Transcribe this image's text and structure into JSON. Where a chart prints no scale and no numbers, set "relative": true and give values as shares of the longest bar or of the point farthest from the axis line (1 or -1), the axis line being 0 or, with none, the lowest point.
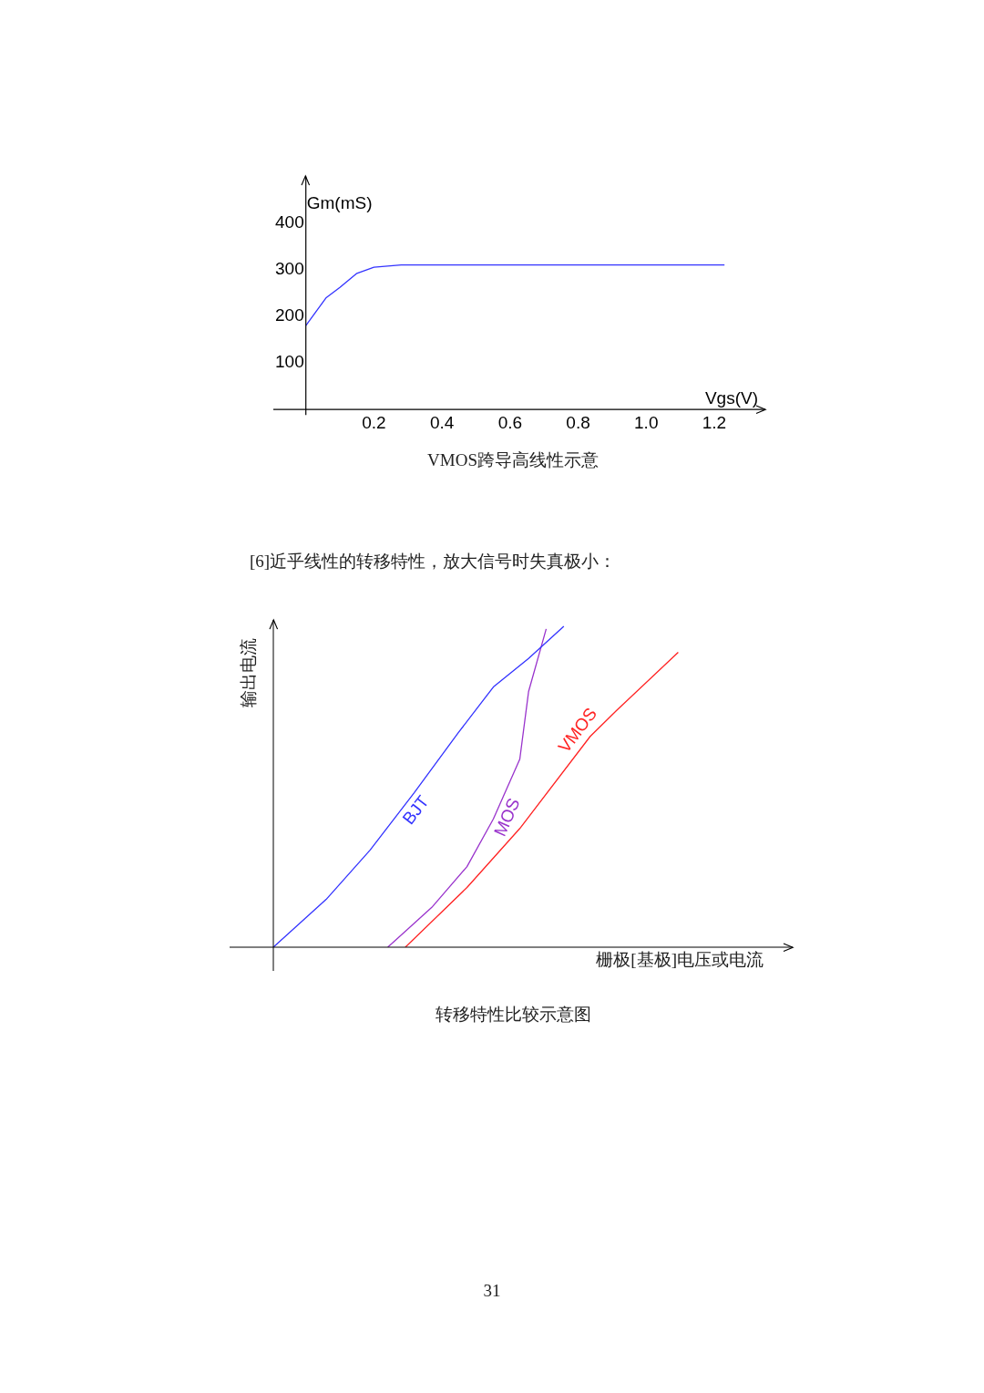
{
  "chart_data": [
    {
      "type": "line",
      "title": "VMOS跨导高线性示意",
      "xlabel": "Vgs(V)",
      "ylabel": "Gm(mS)",
      "xlim": [
        0,
        1.35
      ],
      "ylim": [
        0,
        500
      ],
      "xticks": [
        0.2,
        0.4,
        0.6,
        0.8,
        {
          "value": 1.0,
          "label": "1.0"
        },
        1.2
      ],
      "yticks": [
        100,
        200,
        300,
        400
      ],
      "grid": false,
      "legend": false,
      "series": [
        {
          "color": "#3333ff",
          "x": [
            0,
            0.06,
            0.1,
            0.15,
            0.2,
            0.28,
            1.23
          ],
          "values": [
            180,
            240,
            262,
            292,
            305,
            310,
            310
          ]
        }
      ]
    },
    {
      "type": "line",
      "relative": true,
      "subtitle": "[6]近乎线性的转移特性，放大信号时失真极小：",
      "title": "转移特性比较示意图",
      "xlabel": "栅极[基极]电压或电流",
      "ylabel": "输出电流",
      "annotations": [
        "31"
      ],
      "grid": false,
      "legend": false,
      "categories": [
        null,
        null,
        null,
        null,
        null,
        null,
        null,
        null,
        null,
        null,
        null,
        null,
        null,
        null,
        null,
        null,
        null,
        null,
        null,
        null,
        null,
        null,
        null,
        null,
        null,
        null,
        null,
        null,
        null,
        null,
        null,
        null,
        null,
        null,
        null,
        null,
        null,
        null,
        null,
        null,
        null,
        null,
        null,
        null,
        null,
        null,
        null,
        null,
        null,
        null,
        null,
        null,
        null,
        null,
        null,
        null,
        null,
        null,
        null,
        null
      ],
      "series": [
        {
          "name": "BJT",
          "color": "#3333ff",
          "values": [
            0,
            null,
            null,
            null,
            null,
            null,
            0.149,
            null,
            null,
            null,
            null,
            0.303,
            null,
            null,
            null,
            null,
            0.481,
            null,
            null,
            null,
            null,
            0.668,
            null,
            null,
            null,
            0.811,
            null,
            null,
            null,
            0.9,
            null,
            null,
            null,
            1.0,
            null,
            null,
            null,
            null,
            null,
            null,
            null,
            null,
            null,
            null,
            null,
            null,
            null,
            null,
            null,
            null,
            null,
            null,
            null,
            null,
            null,
            null,
            null,
            null,
            null,
            null
          ]
        },
        {
          "name": "MOS",
          "color": "#9933cc",
          "values": [
            null,
            null,
            null,
            null,
            null,
            null,
            null,
            null,
            null,
            null,
            null,
            null,
            null,
            0,
            null,
            null,
            null,
            null,
            0.124,
            null,
            null,
            null,
            0.251,
            null,
            null,
            0.4,
            null,
            null,
            0.586,
            0.797,
            null,
            0.992,
            null,
            null,
            null,
            null,
            null,
            null,
            null,
            null,
            null,
            null,
            null,
            null,
            null,
            null,
            null,
            null,
            null,
            null,
            null,
            null,
            null,
            null,
            null,
            null,
            null,
            null,
            null,
            null
          ]
        },
        {
          "name": "VMOS",
          "color": "#ff2222",
          "values": [
            null,
            null,
            null,
            null,
            null,
            null,
            null,
            null,
            null,
            null,
            null,
            null,
            null,
            null,
            null,
            0,
            null,
            null,
            null,
            null,
            null,
            null,
            0.186,
            null,
            null,
            null,
            null,
            null,
            0.37,
            null,
            null,
            null,
            null,
            null,
            null,
            null,
            0.657,
            null,
            null,
            0.738,
            null,
            null,
            null,
            null,
            null,
            null,
            0.919,
            null,
            null,
            null,
            null,
            null,
            null,
            null,
            null,
            null,
            null,
            null,
            null,
            null
          ]
        }
      ]
    }
  ]
}
